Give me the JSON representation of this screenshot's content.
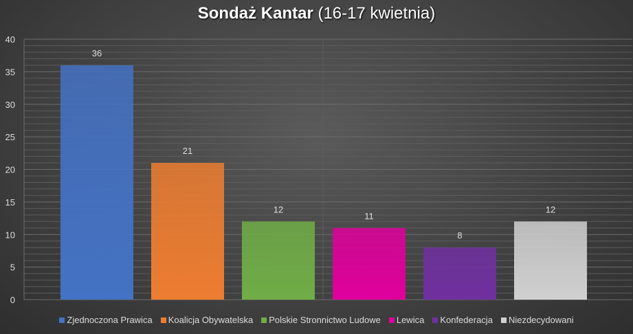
{
  "chart_data": {
    "type": "bar",
    "title_bold": "Sondaż Kantar",
    "title_rest": "(16-17 kwietnia)",
    "categories": [
      "Zjednoczona Prawica",
      "Koalicja Obywatelska",
      "Polskie Stronnictwo Ludowe",
      "Lewica",
      "Konfederacja",
      "Niezdecydowani"
    ],
    "values": [
      36,
      21,
      12,
      11,
      8,
      12
    ],
    "colors": [
      "#4472c4",
      "#ed7d31",
      "#70ad47",
      "#e0009c",
      "#7030a0",
      "#d0d0d0"
    ],
    "ylim": [
      0,
      40
    ],
    "yticks": [
      "0",
      "5",
      "10",
      "15",
      "20",
      "25",
      "30",
      "35",
      "40"
    ],
    "grid": true,
    "legend": "bottom"
  }
}
